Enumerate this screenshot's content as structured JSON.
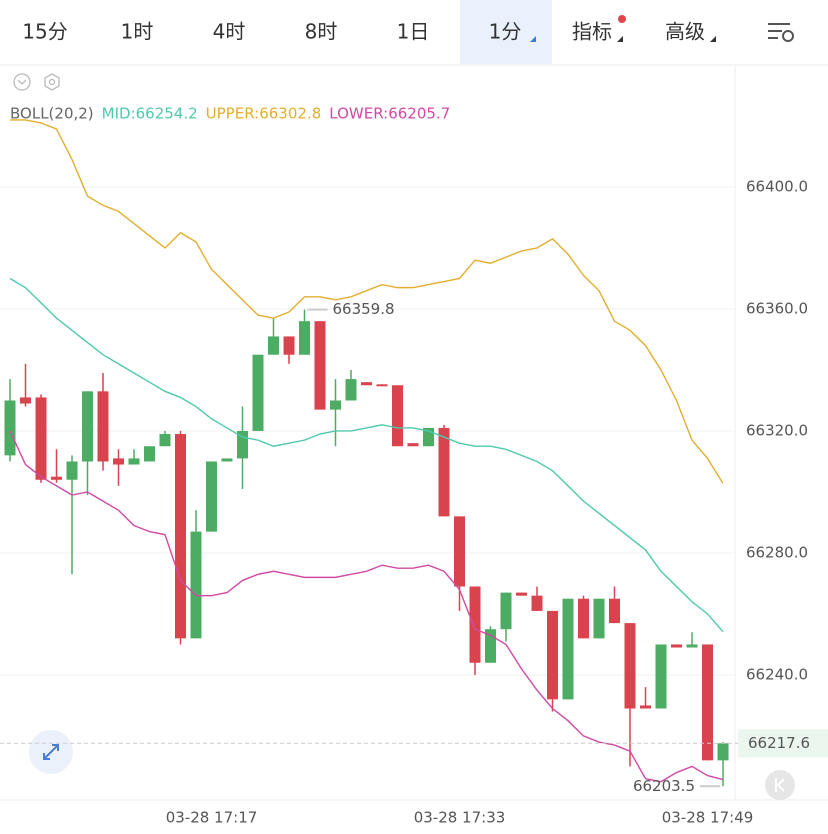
{
  "tabs": [
    {
      "label": "15分"
    },
    {
      "label": "1时"
    },
    {
      "label": "4时"
    },
    {
      "label": "8时"
    },
    {
      "label": "1日"
    },
    {
      "label": "1分",
      "active": true
    },
    {
      "label": "指标"
    },
    {
      "label": "高级"
    }
  ],
  "chart_data": {
    "type": "candlestick",
    "indicator": "BOLL(20,2)",
    "categories": [
      null,
      null,
      null,
      null,
      null,
      null,
      null,
      null,
      null,
      null,
      null,
      null,
      null,
      "03-28 17:17",
      null,
      null,
      null,
      null,
      null,
      null,
      null,
      null,
      null,
      null,
      null,
      null,
      null,
      null,
      null,
      "03-28 17:33",
      null,
      null,
      null,
      null,
      null,
      null,
      null,
      null,
      null,
      null,
      null,
      null,
      null,
      null,
      null,
      "03-28 17:49",
      null
    ],
    "open": [
      66312,
      66331,
      66331,
      66305,
      66304,
      66310,
      66333,
      66311,
      66309,
      66310,
      66315,
      66319,
      66252,
      66287,
      66310,
      66311,
      66320,
      66345,
      66351,
      66345,
      66356,
      66327,
      66330,
      66336,
      66335.3,
      66335,
      66316,
      66315,
      66321,
      66292,
      66269,
      66244,
      66255,
      66267,
      66266,
      66261,
      66232,
      66265,
      66252,
      66265,
      66257,
      66230,
      66229,
      66250,
      66249,
      66250,
      66212
    ],
    "high": [
      66337,
      66342,
      66332,
      66314,
      66312,
      66333,
      66339,
      66314,
      66314,
      66315,
      66320,
      66320,
      66294,
      66310,
      66311,
      66328,
      66345,
      66357,
      66351,
      66359.8,
      66356,
      66337,
      66340,
      66336,
      66335.3,
      66335,
      66316,
      66321,
      66322,
      66292,
      66269,
      66256,
      66267,
      66267,
      66269,
      66261,
      66265,
      66266,
      66265,
      66269,
      66257,
      66236,
      66250,
      66250,
      66254,
      66250,
      66218
    ],
    "low": [
      66310,
      66328,
      66303,
      66303,
      66273,
      66299,
      66307,
      66302,
      66309,
      66310,
      66315,
      66250,
      66252,
      66287,
      66310,
      66301,
      66320,
      66345,
      66342,
      66345,
      66327,
      66315,
      66330,
      66335,
      66335,
      66315,
      66315,
      66315,
      66292,
      66261,
      66240,
      66244,
      66251,
      66266,
      66261,
      66228,
      66232,
      66252,
      66252,
      66257,
      66210,
      66229,
      66229,
      66249,
      66249,
      66212,
      66203.5
    ],
    "close": [
      66330,
      66329,
      66304,
      66304,
      66310,
      66333,
      66310,
      66309,
      66311,
      66315,
      66319,
      66252,
      66287,
      66310,
      66311,
      66320,
      66345,
      66351,
      66345,
      66356,
      66327,
      66330,
      66337,
      66335,
      66335,
      66315,
      66315,
      66321,
      66292,
      66269,
      66244,
      66255,
      66267,
      66266,
      66261,
      66232,
      66265,
      66252,
      66265,
      66257,
      66229,
      66229,
      66250,
      66249,
      66250,
      66212,
      66217.6
    ],
    "up_color": "#4dac63",
    "down_color": "#d9434d",
    "lines": [
      {
        "name": "MID:66254.2",
        "color": "#4ec9ad",
        "values": [
          66370,
          66367,
          66362,
          66357,
          66353,
          66349,
          66345,
          66342,
          66339,
          66336,
          66333,
          66331,
          66328,
          66324,
          66321,
          66318,
          66317,
          66315,
          66316,
          66317,
          66319,
          66320,
          66320,
          66321,
          66322,
          66321,
          66321,
          66320,
          66318,
          66316,
          66315,
          66315,
          66314,
          66312,
          66310,
          66307,
          66302,
          66297,
          66293,
          66289,
          66285,
          66281,
          66274,
          66269,
          66264,
          66260,
          66254.2
        ]
      },
      {
        "name": "UPPER:66302.8",
        "color": "#e3ae2e",
        "values": [
          66422,
          66422,
          66421,
          66419,
          66409,
          66397,
          66394,
          66392,
          66388,
          66384,
          66380,
          66385,
          66382,
          66373,
          66368,
          66363,
          66358,
          66357,
          66359,
          66364,
          66364,
          66363,
          66364,
          66366,
          66368,
          66367,
          66367,
          66368,
          66369,
          66370,
          66376,
          66375,
          66377,
          66379,
          66380,
          66383,
          66378,
          66371,
          66366,
          66356,
          66353,
          66348,
          66340,
          66330,
          66317,
          66311,
          66302.8
        ]
      },
      {
        "name": "LOWER:66205.7",
        "color": "#d149a4",
        "values": [
          66320,
          66309,
          66305,
          66302,
          66299,
          66300,
          66297,
          66294,
          66289,
          66287,
          66286,
          66271,
          66266,
          66266,
          66267,
          66271,
          66273,
          66274,
          66273,
          66272,
          66272,
          66272,
          66273,
          66274,
          66276,
          66275,
          66275,
          66276,
          66274,
          66268,
          66255,
          66253,
          66250,
          66242,
          66235,
          66229,
          66225,
          66220,
          66218,
          66217,
          66215,
          66206,
          66205,
          66208,
          66210,
          66207,
          66205.7
        ]
      }
    ],
    "ylim": [
      66199,
      66440
    ],
    "yticks": [
      {
        "value": 66400,
        "label": "66400.0"
      },
      {
        "value": 66360,
        "label": "66360.0"
      },
      {
        "value": 66320,
        "label": "66320.0"
      },
      {
        "value": 66280,
        "label": "66280.0"
      },
      {
        "value": 66240,
        "label": "66240.0"
      }
    ],
    "grid": true,
    "max_label": 66359.8,
    "min_label": 66203.5,
    "last_price": 66217.6
  }
}
